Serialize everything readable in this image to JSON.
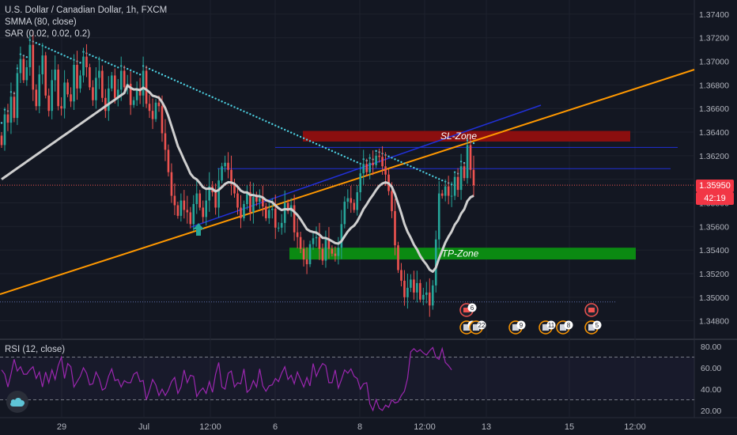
{
  "header": {
    "symbol_line": "U.S. Dollar / Canadian Dollar, 1h, FXCM",
    "indicator_1": "SMMA (80, close)",
    "indicator_2": "SAR (0.02, 0.02, 0.2)"
  },
  "rsi": {
    "label": "RSI (12, close)"
  },
  "price_axis": [
    "1.37400",
    "1.37200",
    "1.37000",
    "1.36800",
    "1.36600",
    "1.36400",
    "1.36200",
    "1.35800",
    "1.35600",
    "1.35400",
    "1.35200",
    "1.35000",
    "1.34800"
  ],
  "rsi_axis": [
    "80.00",
    "60.00",
    "40.00",
    "20.00"
  ],
  "time_axis": [
    "29",
    "Jul",
    "12:00",
    "6",
    "8",
    "12:00",
    "13",
    "15",
    "12:00"
  ],
  "current": {
    "price": "1.35950",
    "countdown": "42:19"
  },
  "zones": {
    "sl": "SL-Zone",
    "tp": "TP-Zone"
  },
  "events": [
    "6",
    "6",
    "22",
    "9",
    "11",
    "8",
    "5"
  ],
  "colors": {
    "background": "#131722",
    "up": "#26a69a",
    "down": "#ef5350",
    "sar": "#4dd0e1",
    "smma": "#cfcfcf",
    "trend_orange": "#ff9800",
    "trend_blue": "#2130d8",
    "sl_zone": "#8b0f0f",
    "tp_zone": "#0b8a12",
    "rsi": "#9c27b0",
    "price_tag": "#f23645"
  },
  "chart_data": {
    "type": "candlestick",
    "title": "U.S. Dollar / Canadian Dollar, 1h, FXCM",
    "ylim": [
      1.3465,
      1.3752
    ],
    "sl_zone": [
      1.3632,
      1.3641
    ],
    "tp_zone": [
      1.3532,
      1.3542
    ],
    "current_price": 1.3595,
    "rsi_ylim": [
      14,
      86
    ],
    "rsi_levels": [
      70,
      30
    ],
    "closes": [
      1.3629,
      1.3655,
      1.3648,
      1.367,
      1.3652,
      1.369,
      1.3702,
      1.3684,
      1.3695,
      1.3714,
      1.3676,
      1.3662,
      1.3689,
      1.3705,
      1.3671,
      1.3658,
      1.3684,
      1.3693,
      1.3662,
      1.366,
      1.3682,
      1.3672,
      1.3666,
      1.3697,
      1.3677,
      1.3688,
      1.3704,
      1.3695,
      1.3678,
      1.3667,
      1.3686,
      1.3692,
      1.3669,
      1.3658,
      1.3677,
      1.3688,
      1.3669,
      1.3676,
      1.3692,
      1.3678,
      1.3681,
      1.3663,
      1.3667,
      1.3677,
      1.3671,
      1.3692,
      1.3664,
      1.3658,
      1.3651,
      1.3665,
      1.3662,
      1.3639,
      1.3625,
      1.3606,
      1.3586,
      1.3578,
      1.3569,
      1.3582,
      1.3574,
      1.3572,
      1.3562,
      1.3579,
      1.3588,
      1.3576,
      1.3568,
      1.3582,
      1.3594,
      1.3589,
      1.3576,
      1.3599,
      1.3611,
      1.3614,
      1.3608,
      1.3596,
      1.3588,
      1.3576,
      1.3567,
      1.3579,
      1.3589,
      1.3572,
      1.3585,
      1.3581,
      1.3584,
      1.3577,
      1.3567,
      1.3574,
      1.3575,
      1.3559,
      1.3559,
      1.3563,
      1.358,
      1.3573,
      1.3578,
      1.3555,
      1.3551,
      1.3541,
      1.3532,
      1.3528,
      1.3545,
      1.355,
      1.3551,
      1.3541,
      1.3531,
      1.3549,
      1.3541,
      1.3537,
      1.3535,
      1.3542,
      1.3562,
      1.3581,
      1.3584,
      1.358,
      1.3574,
      1.3589,
      1.3605,
      1.3613,
      1.3606,
      1.3614,
      1.3612,
      1.362,
      1.3619,
      1.3611,
      1.3604,
      1.359,
      1.3573,
      1.3544,
      1.3523,
      1.3514,
      1.35,
      1.3508,
      1.3515,
      1.3504,
      1.3512,
      1.3498,
      1.3502,
      1.3504,
      1.3493,
      1.351,
      1.3549,
      1.3588,
      1.3586,
      1.3594,
      1.3586,
      1.3586,
      1.3602,
      1.3591,
      1.3611,
      1.3601,
      1.3629,
      1.3608,
      1.3595
    ],
    "rsi": [
      58,
      54,
      42,
      54,
      68,
      57,
      61,
      54,
      54,
      58,
      61,
      50,
      56,
      42,
      56,
      46,
      58,
      49,
      62,
      70,
      50,
      64,
      61,
      42,
      47,
      52,
      60,
      55,
      44,
      45,
      56,
      50,
      39,
      41,
      52,
      59,
      48,
      49,
      42,
      48,
      46,
      46,
      54,
      56,
      47,
      48,
      30,
      39,
      49,
      44,
      34,
      40,
      34,
      39,
      47,
      51,
      36,
      42,
      58,
      46,
      53,
      52,
      33,
      38,
      41,
      36,
      47,
      37,
      54,
      65,
      42,
      40,
      55,
      57,
      42,
      46,
      45,
      59,
      37,
      40,
      48,
      42,
      59,
      43,
      38,
      43,
      44,
      50,
      47,
      55,
      61,
      49,
      53,
      45,
      56,
      49,
      42,
      51,
      43,
      64,
      52,
      59,
      64,
      62,
      46,
      46,
      58,
      41,
      49,
      58,
      55,
      59,
      52,
      50,
      40,
      45,
      46,
      26,
      20,
      30,
      22,
      20,
      25,
      23,
      30,
      27,
      28,
      34,
      38,
      50,
      75,
      78,
      75,
      77,
      74,
      72,
      76,
      79,
      70,
      68,
      78,
      65,
      62,
      58
    ]
  }
}
